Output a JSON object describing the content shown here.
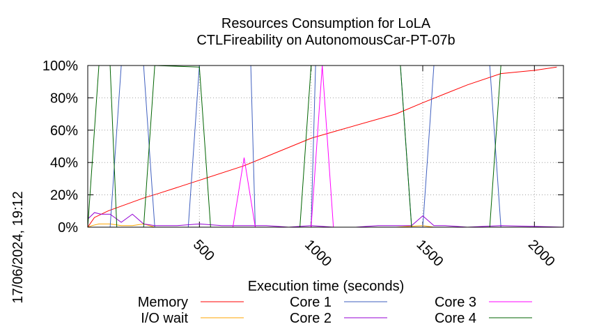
{
  "chart_data": {
    "type": "line",
    "title": "Resources Consumption for LoLA",
    "subtitle": "CTLFireability on AutonomousCar-PT-07b",
    "xlabel": "Execution time (seconds)",
    "ylabel": "",
    "timestamp": "17/06/2024, 19:12",
    "xlim": [
      0,
      2130
    ],
    "ylim": [
      0,
      100
    ],
    "x_ticks": [
      500,
      1000,
      1500,
      2000
    ],
    "y_ticks": [
      0,
      20,
      40,
      60,
      80,
      100
    ],
    "y_tick_suffix": "%",
    "grid": true,
    "legend_position": "bottom",
    "series": [
      {
        "name": "Memory",
        "color": "#ff0000",
        "points": [
          [
            0,
            0
          ],
          [
            30,
            6
          ],
          [
            90,
            10
          ],
          [
            150,
            13
          ],
          [
            250,
            18
          ],
          [
            320,
            21
          ],
          [
            500,
            29
          ],
          [
            700,
            38
          ],
          [
            1000,
            55
          ],
          [
            1100,
            59
          ],
          [
            1380,
            70
          ],
          [
            1500,
            77
          ],
          [
            1700,
            88
          ],
          [
            1850,
            95
          ],
          [
            2000,
            97
          ],
          [
            2100,
            99
          ]
        ]
      },
      {
        "name": "I/O wait",
        "color": "#ffa500",
        "points": [
          [
            0,
            0
          ],
          [
            20,
            1
          ],
          [
            50,
            2
          ],
          [
            100,
            2
          ],
          [
            150,
            1
          ],
          [
            200,
            1
          ],
          [
            250,
            2
          ],
          [
            300,
            0
          ],
          [
            400,
            0
          ],
          [
            500,
            0
          ],
          [
            1000,
            0
          ],
          [
            1380,
            0
          ],
          [
            1500,
            1
          ],
          [
            1550,
            0
          ],
          [
            2130,
            0
          ]
        ]
      },
      {
        "name": "Core 1",
        "color": "#3f5fbf",
        "points": [
          [
            0,
            0
          ],
          [
            100,
            0
          ],
          [
            150,
            100
          ],
          [
            250,
            100
          ],
          [
            300,
            0
          ],
          [
            450,
            0
          ],
          [
            500,
            100
          ],
          [
            730,
            100
          ],
          [
            750,
            0
          ],
          [
            1000,
            0
          ],
          [
            1020,
            100
          ],
          [
            1400,
            100
          ],
          [
            1450,
            0
          ],
          [
            1500,
            0
          ],
          [
            1550,
            100
          ],
          [
            1800,
            100
          ],
          [
            1850,
            0
          ],
          [
            2130,
            0
          ]
        ]
      },
      {
        "name": "Core 2",
        "color": "#9400d3",
        "points": [
          [
            0,
            5
          ],
          [
            30,
            9
          ],
          [
            60,
            8
          ],
          [
            100,
            8
          ],
          [
            150,
            3
          ],
          [
            200,
            8
          ],
          [
            250,
            2
          ],
          [
            300,
            1
          ],
          [
            400,
            1
          ],
          [
            500,
            2
          ],
          [
            600,
            1
          ],
          [
            700,
            1
          ],
          [
            800,
            1
          ],
          [
            900,
            0
          ],
          [
            1000,
            1
          ],
          [
            1100,
            0
          ],
          [
            1200,
            0
          ],
          [
            1300,
            1
          ],
          [
            1380,
            1
          ],
          [
            1450,
            1
          ],
          [
            1500,
            7
          ],
          [
            1550,
            1
          ],
          [
            1600,
            1
          ],
          [
            1700,
            0
          ],
          [
            1850,
            1
          ],
          [
            2130,
            0
          ]
        ]
      },
      {
        "name": "Core 3",
        "color": "#ff00ff",
        "points": [
          [
            0,
            0
          ],
          [
            650,
            0
          ],
          [
            700,
            43
          ],
          [
            750,
            0
          ],
          [
            1000,
            0
          ],
          [
            1050,
            100
          ],
          [
            1100,
            0
          ],
          [
            2130,
            0
          ]
        ]
      },
      {
        "name": "Core 4",
        "color": "#006400",
        "points": [
          [
            0,
            0
          ],
          [
            50,
            100
          ],
          [
            100,
            100
          ],
          [
            130,
            0
          ],
          [
            250,
            0
          ],
          [
            300,
            100
          ],
          [
            500,
            99
          ],
          [
            550,
            0
          ],
          [
            700,
            0
          ],
          [
            750,
            0
          ],
          [
            950,
            0
          ],
          [
            1000,
            100
          ],
          [
            1400,
            100
          ],
          [
            1450,
            0
          ],
          [
            1800,
            0
          ],
          [
            1850,
            100
          ],
          [
            2130,
            100
          ]
        ]
      }
    ]
  }
}
